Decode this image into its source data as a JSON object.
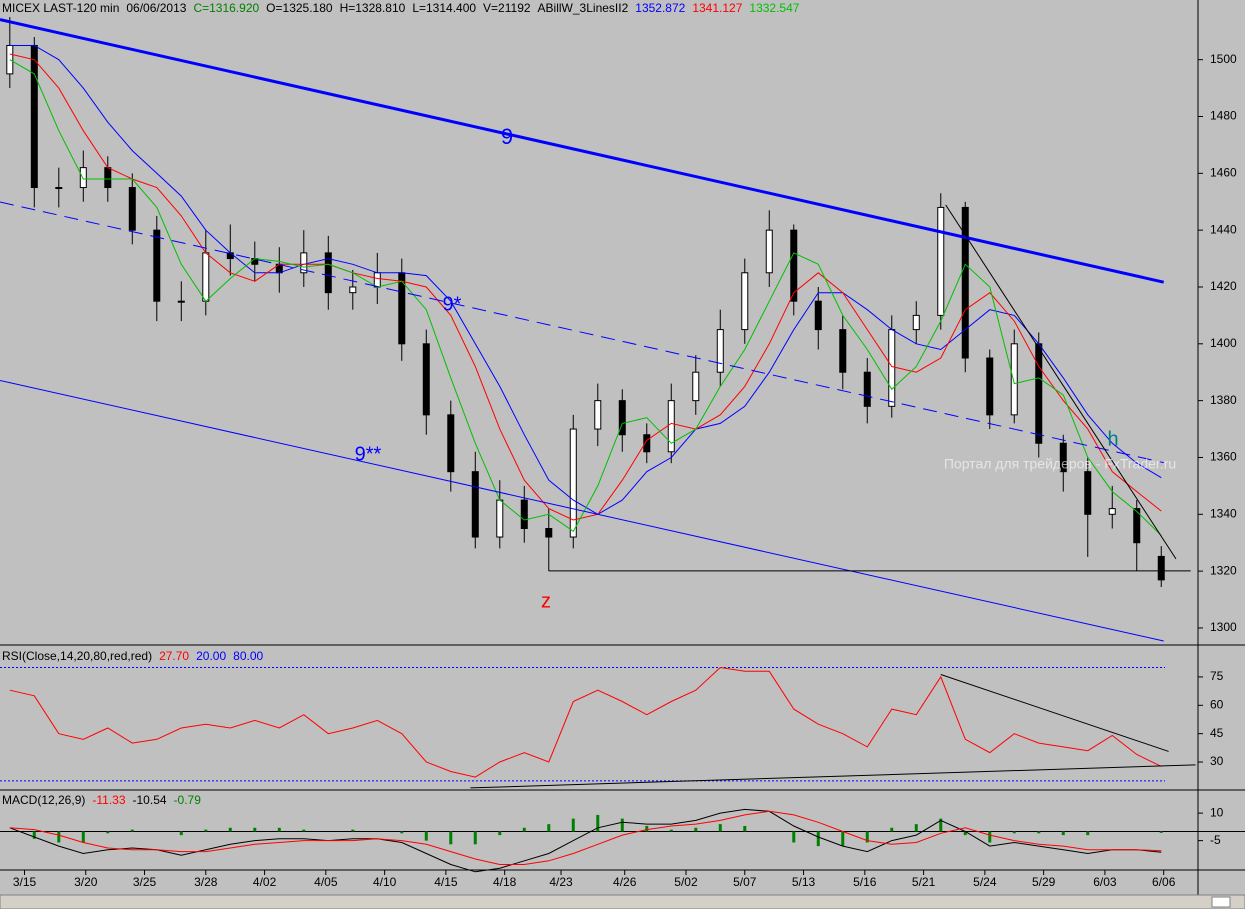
{
  "chart_data": [
    {
      "type": "candlestick",
      "info": [
        {
          "text": "MICEX LAST-120 min",
          "color": "#000000"
        },
        {
          "text": "06/06/2013",
          "color": "#000000"
        },
        {
          "text": "C=1316.920",
          "color": "#008000"
        },
        {
          "text": "O=1325.180",
          "color": "#000000"
        },
        {
          "text": "H=1328.810",
          "color": "#000000"
        },
        {
          "text": "L=1314.400",
          "color": "#000000"
        },
        {
          "text": "V=21192",
          "color": "#000000"
        },
        {
          "text": "ABillW_3LinesII2",
          "color": "#000000"
        },
        {
          "text": "1352.872",
          "color": "#0000ff"
        },
        {
          "text": "1341.127",
          "color": "#ff0000"
        },
        {
          "text": "1332.547",
          "color": "#00c000"
        }
      ],
      "xlim": [
        -0.4,
        48.5
      ],
      "ylim": [
        1294,
        1521
      ],
      "yticks": [
        1300,
        1320,
        1340,
        1360,
        1380,
        1400,
        1420,
        1440,
        1460,
        1480,
        1500
      ],
      "open": [
        1495,
        1505,
        1455,
        1455,
        1462,
        1455,
        1440,
        1415,
        1415,
        1432,
        1430,
        1428,
        1425,
        1432,
        1418,
        1420,
        1425,
        1400,
        1375,
        1355,
        1332,
        1345,
        1335,
        1332,
        1370,
        1380,
        1368,
        1362,
        1380,
        1390,
        1405,
        1425,
        1440,
        1415,
        1405,
        1390,
        1378,
        1405,
        1410,
        1448,
        1395,
        1375,
        1400,
        1365,
        1355,
        1340,
        1342,
        1325.18
      ],
      "high": [
        1515,
        1508,
        1462,
        1468,
        1466,
        1460,
        1445,
        1422,
        1440,
        1442,
        1436,
        1434,
        1440,
        1438,
        1426,
        1432,
        1430,
        1405,
        1380,
        1362,
        1352,
        1350,
        1342,
        1375,
        1386,
        1384,
        1372,
        1386,
        1396,
        1412,
        1430,
        1447,
        1442,
        1420,
        1410,
        1395,
        1410,
        1415,
        1453,
        1450,
        1398,
        1405,
        1404,
        1368,
        1360,
        1350,
        1345,
        1328.81
      ],
      "low": [
        1490,
        1448,
        1448,
        1450,
        1450,
        1435,
        1408,
        1408,
        1410,
        1424,
        1422,
        1418,
        1420,
        1412,
        1412,
        1414,
        1394,
        1368,
        1348,
        1328,
        1328,
        1330,
        1320,
        1328,
        1364,
        1362,
        1358,
        1358,
        1375,
        1385,
        1400,
        1420,
        1410,
        1398,
        1384,
        1372,
        1374,
        1400,
        1405,
        1390,
        1370,
        1372,
        1360,
        1348,
        1325,
        1335,
        1320,
        1314.4
      ],
      "close": [
        1505,
        1455,
        1455,
        1462,
        1455,
        1440,
        1415,
        1415,
        1432,
        1430,
        1428,
        1425,
        1432,
        1418,
        1420,
        1425,
        1400,
        1375,
        1355,
        1332,
        1345,
        1335,
        1332,
        1370,
        1380,
        1368,
        1362,
        1380,
        1390,
        1405,
        1425,
        1440,
        1415,
        1405,
        1390,
        1378,
        1405,
        1410,
        1448,
        1395,
        1375,
        1400,
        1365,
        1355,
        1340,
        1342,
        1330,
        1316.92
      ],
      "series": [
        {
          "color": "#0000ff",
          "values": [
            1505,
            1505,
            1500,
            1490,
            1478,
            1468,
            1460,
            1452,
            1440,
            1432,
            1425,
            1425,
            1428,
            1430,
            1428,
            1425,
            1425,
            1424,
            1415,
            1400,
            1385,
            1368,
            1352,
            1345,
            1340,
            1345,
            1355,
            1360,
            1370,
            1372,
            1378,
            1390,
            1405,
            1418,
            1418,
            1412,
            1405,
            1400,
            1398,
            1405,
            1412,
            1410,
            1400,
            1388,
            1375,
            1365,
            1358,
            1352.872
          ]
        },
        {
          "color": "#ff0000",
          "values": [
            1502,
            1500,
            1490,
            1475,
            1462,
            1458,
            1455,
            1445,
            1432,
            1425,
            1422,
            1428,
            1428,
            1428,
            1425,
            1423,
            1422,
            1420,
            1410,
            1392,
            1370,
            1352,
            1342,
            1338,
            1340,
            1352,
            1366,
            1372,
            1370,
            1375,
            1385,
            1400,
            1418,
            1425,
            1418,
            1405,
            1392,
            1390,
            1395,
            1412,
            1418,
            1408,
            1392,
            1380,
            1370,
            1355,
            1348,
            1341.127
          ]
        },
        {
          "color": "#00c000",
          "values": [
            1500,
            1495,
            1475,
            1458,
            1458,
            1458,
            1448,
            1428,
            1415,
            1423,
            1430,
            1429,
            1427,
            1428,
            1425,
            1420,
            1422,
            1412,
            1388,
            1365,
            1345,
            1338,
            1340,
            1334,
            1350,
            1372,
            1374,
            1365,
            1370,
            1385,
            1398,
            1415,
            1432,
            1428,
            1410,
            1398,
            1384,
            1392,
            1408,
            1428,
            1420,
            1386,
            1388,
            1382,
            1360,
            1348,
            1341,
            1332.547
          ]
        }
      ],
      "lines": [
        {
          "color": "#0000ff",
          "width": 3,
          "dash": false,
          "x": [
            -0.4,
            47.1
          ],
          "y": [
            1514.1,
            1421.7
          ]
        },
        {
          "color": "#0000ff",
          "width": 1,
          "dash": true,
          "x": [
            -0.4,
            47.1
          ],
          "y": [
            1449.9,
            1358.2
          ]
        },
        {
          "color": "#0000ff",
          "width": 1,
          "dash": false,
          "x": [
            -0.4,
            47.1
          ],
          "y": [
            1387.1,
            1295.4
          ]
        },
        {
          "color": "#000000",
          "width": 1,
          "dash": false,
          "x": [
            22.0,
            48.2
          ],
          "y": [
            1320.1,
            1320.1
          ]
        },
        {
          "color": "#000000",
          "width": 1,
          "dash": false,
          "x": [
            38.2,
            47.6
          ],
          "y": [
            1448.9,
            1324.3
          ]
        }
      ],
      "annotations": [
        {
          "text": "9",
          "color": "#0000ff"
        },
        {
          "text": "9*",
          "color": "#0000ff"
        },
        {
          "text": "9**",
          "color": "#0000ff"
        },
        {
          "text": "z",
          "color": "#ff0000"
        },
        {
          "text": "h",
          "color": "#008080"
        },
        {
          "text": "Портал для трейдеров - FxTrader.ru",
          "color": "#ffffff"
        }
      ]
    },
    {
      "type": "line",
      "info": [
        {
          "text": "RSI(Close,14,20,80,red,red)",
          "color": "#000000"
        },
        {
          "text": "27.70",
          "color": "#ff0000"
        },
        {
          "text": "20.00",
          "color": "#0000ff"
        },
        {
          "text": "80.00",
          "color": "#0000ff"
        }
      ],
      "xlim": [
        -0.4,
        48.5
      ],
      "ylim": [
        15.2,
        90.3
      ],
      "yticks": [
        30,
        45,
        60,
        75
      ],
      "levels": [
        20,
        80
      ],
      "level_color": "#0000ff",
      "color": "#ff0000",
      "values": [
        68,
        65,
        45,
        42,
        48,
        40,
        42,
        48,
        50,
        48,
        52,
        48,
        55,
        45,
        48,
        52,
        45,
        30,
        25,
        22,
        30,
        35,
        30,
        62,
        68,
        62,
        55,
        62,
        68,
        80,
        78,
        78,
        58,
        50,
        45,
        38,
        58,
        55,
        75,
        42,
        35,
        45,
        40,
        38,
        36,
        44,
        34,
        27.7
      ],
      "lines": [
        {
          "color": "#000000",
          "width": 1,
          "dash": false,
          "x": [
            38.0,
            47.3
          ],
          "y": [
            76.3,
            35.6
          ]
        },
        {
          "color": "#000000",
          "width": 1,
          "dash": false,
          "x": [
            18.8,
            48.4
          ],
          "y": [
            16.3,
            28.5
          ]
        }
      ]
    },
    {
      "type": "macd",
      "info": [
        {
          "text": "MACD(12,26,9)",
          "color": "#000000"
        },
        {
          "text": "-11.33",
          "color": "#ff0000"
        },
        {
          "text": "-10.54",
          "color": "#000000"
        },
        {
          "text": "-0.79",
          "color": "#008000"
        }
      ],
      "xlim": [
        -0.4,
        48.5
      ],
      "ylim": [
        -21,
        21.5
      ],
      "yticks": [
        10,
        -5
      ],
      "xticks": [
        {
          "value": 0.6,
          "label": "3/15"
        },
        {
          "value": 3.1,
          "label": "3/20"
        },
        {
          "value": 5.5,
          "label": "3/25"
        },
        {
          "value": 8.0,
          "label": "3/28"
        },
        {
          "value": 10.4,
          "label": "4/02"
        },
        {
          "value": 12.9,
          "label": "4/05"
        },
        {
          "value": 15.3,
          "label": "4/10"
        },
        {
          "value": 17.8,
          "label": "4/15"
        },
        {
          "value": 20.2,
          "label": "4/18"
        },
        {
          "value": 22.5,
          "label": "4/23"
        },
        {
          "value": 25.1,
          "label": "4/26"
        },
        {
          "value": 27.6,
          "label": "5/02"
        },
        {
          "value": 30.0,
          "label": "5/07"
        },
        {
          "value": 32.4,
          "label": "5/13"
        },
        {
          "value": 34.9,
          "label": "5/16"
        },
        {
          "value": 37.3,
          "label": "5/21"
        },
        {
          "value": 39.8,
          "label": "5/24"
        },
        {
          "value": 42.2,
          "label": "5/29"
        },
        {
          "value": 44.7,
          "label": "6/03"
        },
        {
          "value": 47.1,
          "label": "6/06"
        }
      ],
      "series": [
        {
          "color": "#000000",
          "values": [
            2,
            -3,
            -8,
            -12,
            -10,
            -9,
            -10,
            -13,
            -10,
            -7,
            -5,
            -4,
            -4,
            -5,
            -4,
            -4,
            -6,
            -12,
            -18,
            -22,
            -20,
            -16,
            -12,
            -5,
            2,
            5,
            4,
            4,
            6,
            10,
            12,
            11,
            3,
            -3,
            -8,
            -11,
            -5,
            -2,
            6,
            0,
            -8,
            -6,
            -8,
            -10,
            -12,
            -10,
            -10,
            -11.33
          ]
        },
        {
          "color": "#ff0000",
          "values": [
            2,
            1,
            -2,
            -6,
            -9,
            -10,
            -10,
            -11,
            -11,
            -9,
            -7,
            -6,
            -5,
            -5,
            -5,
            -4,
            -5,
            -7,
            -11,
            -15,
            -18,
            -18,
            -16,
            -12,
            -7,
            -2,
            1,
            3,
            4,
            6,
            9,
            11,
            9,
            5,
            0,
            -5,
            -7,
            -6,
            -1,
            2,
            -2,
            -5,
            -7,
            -8,
            -10,
            -10,
            -10,
            -10.54
          ]
        }
      ],
      "histogram": {
        "color": "#008000",
        "values": [
          0,
          -4,
          -6,
          -6,
          -1,
          1,
          0,
          -2,
          1,
          2,
          2,
          2,
          1,
          0,
          1,
          0,
          -1,
          -5,
          -7,
          -7,
          -2,
          2,
          4,
          7,
          9,
          7,
          3,
          1,
          2,
          4,
          3,
          0,
          -6,
          -8,
          -8,
          -6,
          2,
          4,
          7,
          -2,
          -6,
          -1,
          -1,
          -2,
          -2,
          0,
          0,
          -0.79
        ]
      }
    }
  ]
}
